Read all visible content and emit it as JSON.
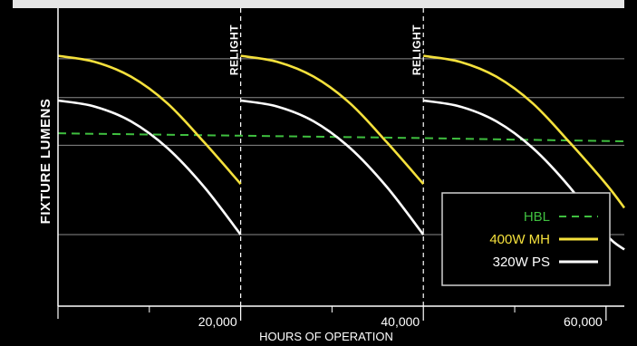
{
  "chart_data": {
    "type": "line",
    "title": "",
    "xlabel": "HOURS OF OPERATION",
    "ylabel": "FIXTURE LUMENS",
    "xlim": [
      0,
      62000
    ],
    "ylim": [
      0,
      100
    ],
    "x_ticks": [
      20000,
      40000,
      60000
    ],
    "x_tick_labels": [
      "20,000",
      "40,000",
      "60,000"
    ],
    "minor_x_ticks": [
      10000,
      30000,
      50000
    ],
    "y_gridlines": [
      24,
      54,
      70,
      83
    ],
    "y_ticks_labeled": false,
    "grid": true,
    "legend_position": "bottom-right",
    "events": [
      {
        "x": 20000,
        "label": "RELIGHT"
      },
      {
        "x": 40000,
        "label": "RELIGHT"
      }
    ],
    "series": [
      {
        "name": "HBL",
        "style": "dashed",
        "color": "#3fbf3f",
        "x": [
          0,
          20000,
          40000,
          62000
        ],
        "y": [
          58,
          57.2,
          56.4,
          55.3
        ]
      },
      {
        "name": "400W MH",
        "style": "solid",
        "color": "#f5e13c",
        "segments": [
          {
            "x": [
              0,
              4000,
              8000,
              12000,
              16000,
              20000
            ],
            "y": [
              84,
              82,
              77,
              68,
              55,
              41
            ]
          },
          {
            "x": [
              20000,
              24000,
              28000,
              32000,
              36000,
              40000
            ],
            "y": [
              84,
              82,
              77,
              68,
              55,
              41
            ]
          },
          {
            "x": [
              40000,
              44000,
              48000,
              52000,
              56000,
              60000,
              62000
            ],
            "y": [
              84,
              82,
              77,
              68,
              55,
              41,
              33
            ]
          }
        ]
      },
      {
        "name": "320W PS",
        "style": "solid",
        "color": "#ffffff",
        "segments": [
          {
            "x": [
              0,
              4000,
              8000,
              12000,
              16000,
              20000
            ],
            "y": [
              69,
              67,
              62,
              53,
              40,
              24
            ]
          },
          {
            "x": [
              20000,
              24000,
              28000,
              32000,
              36000,
              40000
            ],
            "y": [
              69,
              67,
              62,
              53,
              40,
              24
            ]
          },
          {
            "x": [
              40000,
              44000,
              48000,
              52000,
              56000,
              60000,
              62000
            ],
            "y": [
              69,
              67,
              62,
              53,
              40,
              24,
              19
            ]
          }
        ]
      }
    ]
  },
  "legend": {
    "items": [
      {
        "label": "HBL",
        "color": "#3fbf3f",
        "style": "dashed"
      },
      {
        "label": "400W MH",
        "color": "#f5e13c",
        "style": "solid"
      },
      {
        "label": "320W PS",
        "color": "#ffffff",
        "style": "solid"
      }
    ]
  },
  "colors": {
    "background": "#000000",
    "grid": "#8a8a8a",
    "axis": "#ffffff",
    "banner": "#e6e6e6",
    "legend_border": "#cfcfcf"
  }
}
